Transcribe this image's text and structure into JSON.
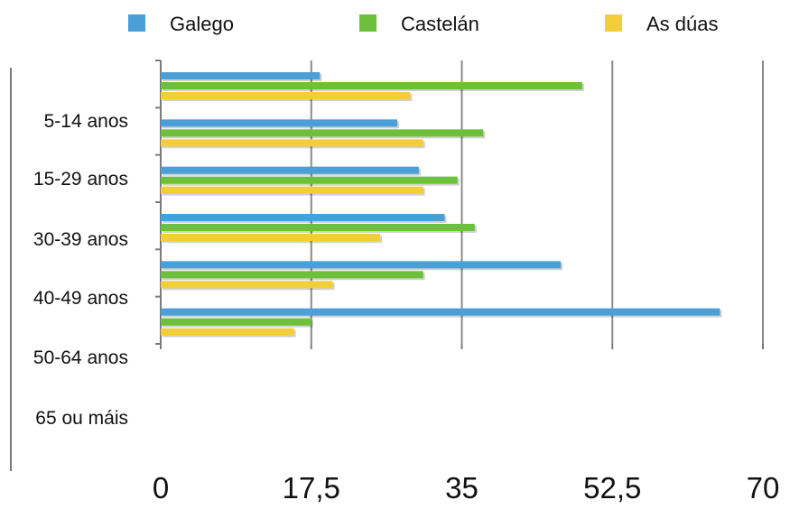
{
  "chart_data": {
    "type": "bar",
    "orientation": "horizontal",
    "title": "",
    "xlabel": "",
    "ylabel": "",
    "xlim": [
      0,
      70
    ],
    "x_ticks": [
      "0",
      "17,5",
      "35",
      "52,5",
      "70"
    ],
    "grid": true,
    "legend_position": "top",
    "categories": [
      "5-14 anos",
      "15-29 anos",
      "30-39 anos",
      "40-49 anos",
      "50-64 anos",
      "65 ou máis"
    ],
    "series": [
      {
        "name": "Galego",
        "color": "#4a9fd6",
        "values": [
          18.5,
          27.5,
          30.0,
          33.0,
          46.5,
          65.0
        ]
      },
      {
        "name": "Castelán",
        "color": "#6cc03a",
        "values": [
          49.0,
          37.5,
          34.5,
          36.5,
          30.5,
          17.5
        ]
      },
      {
        "name": "As dúas",
        "color": "#f2cf38",
        "values": [
          29.0,
          30.5,
          30.5,
          25.5,
          20.0,
          15.5
        ]
      }
    ]
  }
}
